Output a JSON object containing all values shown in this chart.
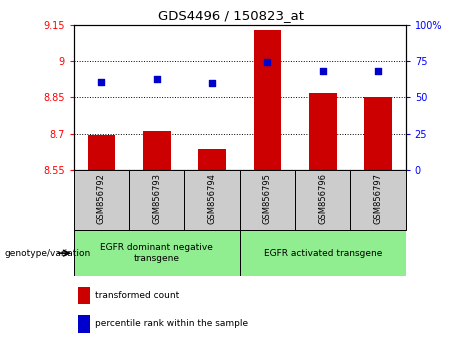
{
  "title": "GDS4496 / 150823_at",
  "samples": [
    "GSM856792",
    "GSM856793",
    "GSM856794",
    "GSM856795",
    "GSM856796",
    "GSM856797"
  ],
  "bar_values": [
    8.695,
    8.71,
    8.635,
    9.13,
    8.87,
    8.85
  ],
  "scatter_values": [
    8.915,
    8.925,
    8.91,
    8.995,
    8.96,
    8.96
  ],
  "bar_color": "#cc0000",
  "scatter_color": "#0000cc",
  "ylim_left": [
    8.55,
    9.15
  ],
  "ylim_right": [
    0,
    100
  ],
  "yticks_left": [
    8.55,
    8.7,
    8.85,
    9.0,
    9.15
  ],
  "yticks_right": [
    0,
    25,
    50,
    75,
    100
  ],
  "ytick_labels_left": [
    "8.55",
    "8.7",
    "8.85",
    "9",
    "9.15"
  ],
  "ytick_labels_right": [
    "0",
    "25",
    "50",
    "75",
    "100%"
  ],
  "group1_label": "EGFR dominant negative\ntransgene",
  "group2_label": "EGFR activated transgene",
  "genotype_label": "genotype/variation",
  "legend_bar_label": "transformed count",
  "legend_scatter_label": "percentile rank within the sample",
  "grid_yticks": [
    8.7,
    8.85,
    9.0
  ],
  "bar_width": 0.5,
  "sample_bg_color": "#cccccc",
  "green_color": "#90ee90"
}
